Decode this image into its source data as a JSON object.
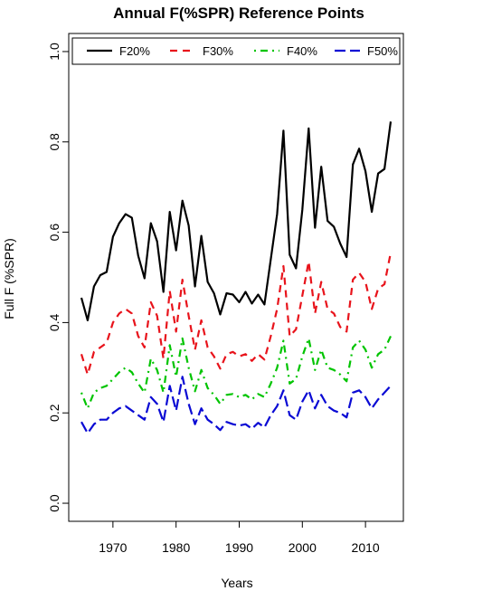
{
  "chart_data": {
    "type": "line",
    "title": "Annual F(%SPR) Reference Points",
    "xlabel": "Years",
    "ylabel": "Full F (%SPR)",
    "xlim": [
      1963,
      2016
    ],
    "ylim": [
      -0.04,
      1.04
    ],
    "x_ticks": [
      1970,
      1980,
      1990,
      2000,
      2010
    ],
    "y_ticks": [
      0.0,
      0.2,
      0.4,
      0.6,
      0.8,
      1.0
    ],
    "x_tick_labels": [
      "1970",
      "1980",
      "1990",
      "2000",
      "2010"
    ],
    "y_tick_labels": [
      "0.0",
      "0.2",
      "0.4",
      "0.6",
      "0.8",
      "1.0"
    ],
    "grid": false,
    "legend_position": "top",
    "x": [
      1965,
      1966,
      1967,
      1968,
      1969,
      1970,
      1971,
      1972,
      1973,
      1974,
      1975,
      1976,
      1977,
      1978,
      1979,
      1980,
      1981,
      1982,
      1983,
      1984,
      1985,
      1986,
      1987,
      1988,
      1989,
      1990,
      1991,
      1992,
      1993,
      1994,
      1995,
      1996,
      1997,
      1998,
      1999,
      2000,
      2001,
      2002,
      2003,
      2004,
      2005,
      2006,
      2007,
      2008,
      2009,
      2010,
      2011,
      2012,
      2013,
      2014
    ],
    "series": [
      {
        "name": "F20%",
        "color": "#000000",
        "dash": "solid",
        "values": [
          0.455,
          0.405,
          0.48,
          0.505,
          0.512,
          0.59,
          0.62,
          0.64,
          0.632,
          0.548,
          0.498,
          0.62,
          0.58,
          0.468,
          0.645,
          0.56,
          0.67,
          0.615,
          0.48,
          0.592,
          0.49,
          0.465,
          0.418,
          0.465,
          0.462,
          0.445,
          0.468,
          0.442,
          0.462,
          0.44,
          0.54,
          0.64,
          0.825,
          0.55,
          0.52,
          0.65,
          0.83,
          0.61,
          0.745,
          0.625,
          0.612,
          0.575,
          0.545,
          0.75,
          0.785,
          0.735,
          0.645,
          0.73,
          0.74,
          0.845
        ]
      },
      {
        "name": "F30%",
        "color": "#e8131b",
        "dash": "dashed",
        "values": [
          0.33,
          0.285,
          0.335,
          0.345,
          0.355,
          0.4,
          0.42,
          0.43,
          0.42,
          0.37,
          0.345,
          0.445,
          0.415,
          0.32,
          0.47,
          0.38,
          0.495,
          0.415,
          0.34,
          0.405,
          0.345,
          0.325,
          0.298,
          0.33,
          0.335,
          0.325,
          0.33,
          0.315,
          0.33,
          0.318,
          0.37,
          0.43,
          0.525,
          0.37,
          0.385,
          0.46,
          0.535,
          0.42,
          0.49,
          0.43,
          0.42,
          0.39,
          0.38,
          0.495,
          0.51,
          0.49,
          0.43,
          0.475,
          0.485,
          0.555
        ]
      },
      {
        "name": "F40%",
        "color": "#00c400",
        "dash": "dotdash",
        "values": [
          0.245,
          0.21,
          0.245,
          0.255,
          0.26,
          0.275,
          0.29,
          0.3,
          0.29,
          0.265,
          0.245,
          0.32,
          0.295,
          0.245,
          0.35,
          0.28,
          0.365,
          0.3,
          0.248,
          0.295,
          0.255,
          0.24,
          0.22,
          0.24,
          0.242,
          0.235,
          0.24,
          0.23,
          0.242,
          0.235,
          0.265,
          0.3,
          0.36,
          0.265,
          0.275,
          0.325,
          0.365,
          0.295,
          0.34,
          0.3,
          0.295,
          0.285,
          0.27,
          0.345,
          0.36,
          0.34,
          0.3,
          0.33,
          0.34,
          0.37
        ]
      },
      {
        "name": "F50%",
        "color": "#0a0ad4",
        "dash": "longdash",
        "values": [
          0.18,
          0.155,
          0.175,
          0.185,
          0.185,
          0.2,
          0.21,
          0.215,
          0.205,
          0.195,
          0.185,
          0.235,
          0.22,
          0.18,
          0.26,
          0.205,
          0.28,
          0.22,
          0.175,
          0.21,
          0.185,
          0.175,
          0.162,
          0.18,
          0.175,
          0.172,
          0.175,
          0.165,
          0.178,
          0.168,
          0.195,
          0.215,
          0.25,
          0.195,
          0.185,
          0.225,
          0.25,
          0.21,
          0.24,
          0.215,
          0.205,
          0.2,
          0.19,
          0.245,
          0.25,
          0.235,
          0.21,
          0.23,
          0.245,
          0.26
        ]
      }
    ]
  }
}
